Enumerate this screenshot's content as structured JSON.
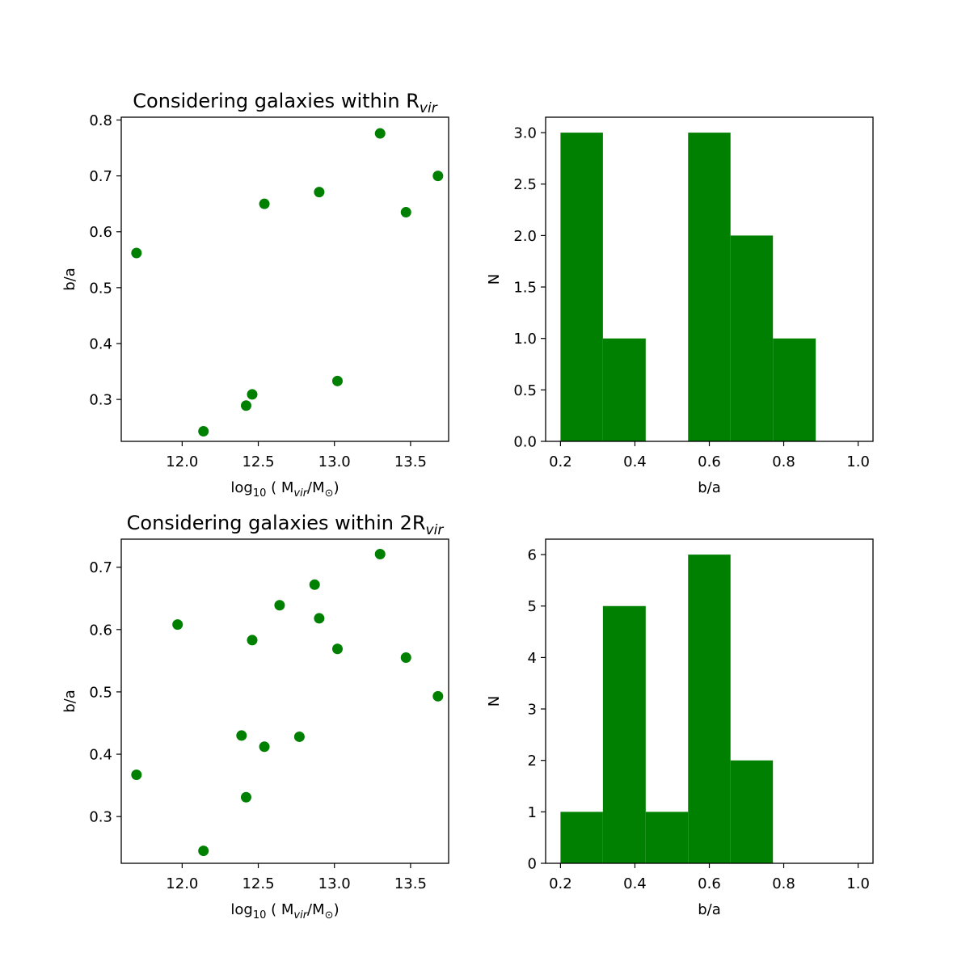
{
  "colors": {
    "mark": "#008000",
    "axis": "#000000",
    "background": "#ffffff"
  },
  "chart_data": [
    {
      "id": "scatter-top",
      "type": "scatter",
      "title": "Considering galaxies within R",
      "title_sub": "vir",
      "xlabel": "log",
      "xlabel_parts": {
        "base_sub": "10",
        "mid": " ( M",
        "vir_sub": "vir",
        "slash": "/M",
        "sun_sub": "⊙",
        "close": ")"
      },
      "ylabel": "b/a",
      "xlim": [
        11.6,
        13.75
      ],
      "ylim": [
        0.225,
        0.805
      ],
      "xticks": [
        12.0,
        12.5,
        13.0,
        13.5
      ],
      "xtick_labels": [
        "12.0",
        "12.5",
        "13.0",
        "13.5"
      ],
      "yticks": [
        0.3,
        0.4,
        0.5,
        0.6,
        0.7,
        0.8
      ],
      "ytick_labels": [
        "0.3",
        "0.4",
        "0.5",
        "0.6",
        "0.7",
        "0.8"
      ],
      "points": [
        {
          "x": 11.7,
          "y": 0.562
        },
        {
          "x": 12.14,
          "y": 0.243
        },
        {
          "x": 12.42,
          "y": 0.289
        },
        {
          "x": 12.46,
          "y": 0.309
        },
        {
          "x": 12.54,
          "y": 0.65
        },
        {
          "x": 12.9,
          "y": 0.671
        },
        {
          "x": 13.02,
          "y": 0.333
        },
        {
          "x": 13.3,
          "y": 0.776
        },
        {
          "x": 13.47,
          "y": 0.635
        },
        {
          "x": 13.68,
          "y": 0.7
        }
      ]
    },
    {
      "id": "hist-top",
      "type": "bar",
      "title": "",
      "xlabel": "b/a",
      "ylabel": "N",
      "xlim": [
        0.16,
        1.04
      ],
      "ylim": [
        0,
        3.15
      ],
      "xticks": [
        0.2,
        0.4,
        0.6,
        0.8,
        1.0
      ],
      "xtick_labels": [
        "0.2",
        "0.4",
        "0.6",
        "0.8",
        "1.0"
      ],
      "yticks": [
        0,
        0.5,
        1.0,
        1.5,
        2.0,
        2.5,
        3.0
      ],
      "ytick_labels": [
        "0.0",
        "0.5",
        "1.0",
        "1.5",
        "2.0",
        "2.5",
        "3.0"
      ],
      "bins": [
        {
          "x0": 0.2,
          "x1": 0.314,
          "value": 3
        },
        {
          "x0": 0.314,
          "x1": 0.429,
          "value": 1
        },
        {
          "x0": 0.429,
          "x1": 0.543,
          "value": 0
        },
        {
          "x0": 0.543,
          "x1": 0.657,
          "value": 3
        },
        {
          "x0": 0.657,
          "x1": 0.771,
          "value": 2
        },
        {
          "x0": 0.771,
          "x1": 0.886,
          "value": 1
        },
        {
          "x0": 0.886,
          "x1": 1.0,
          "value": 0
        }
      ]
    },
    {
      "id": "scatter-bottom",
      "type": "scatter",
      "title": "Considering galaxies within 2R",
      "title_sub": "vir",
      "xlabel": "log",
      "xlabel_parts": {
        "base_sub": "10",
        "mid": " ( M",
        "vir_sub": "vir",
        "slash": "/M",
        "sun_sub": "⊙",
        "close": ")"
      },
      "ylabel": "b/a",
      "xlim": [
        11.6,
        13.75
      ],
      "ylim": [
        0.225,
        0.745
      ],
      "xticks": [
        12.0,
        12.5,
        13.0,
        13.5
      ],
      "xtick_labels": [
        "12.0",
        "12.5",
        "13.0",
        "13.5"
      ],
      "yticks": [
        0.3,
        0.4,
        0.5,
        0.6,
        0.7
      ],
      "ytick_labels": [
        "0.3",
        "0.4",
        "0.5",
        "0.6",
        "0.7"
      ],
      "points": [
        {
          "x": 11.7,
          "y": 0.367
        },
        {
          "x": 11.97,
          "y": 0.608
        },
        {
          "x": 12.14,
          "y": 0.245
        },
        {
          "x": 12.39,
          "y": 0.43
        },
        {
          "x": 12.42,
          "y": 0.331
        },
        {
          "x": 12.46,
          "y": 0.583
        },
        {
          "x": 12.54,
          "y": 0.412
        },
        {
          "x": 12.64,
          "y": 0.639
        },
        {
          "x": 12.77,
          "y": 0.428
        },
        {
          "x": 12.87,
          "y": 0.672
        },
        {
          "x": 12.9,
          "y": 0.618
        },
        {
          "x": 13.02,
          "y": 0.569
        },
        {
          "x": 13.3,
          "y": 0.721
        },
        {
          "x": 13.47,
          "y": 0.555
        },
        {
          "x": 13.68,
          "y": 0.493
        }
      ]
    },
    {
      "id": "hist-bottom",
      "type": "bar",
      "title": "",
      "xlabel": "b/a",
      "ylabel": "N",
      "xlim": [
        0.16,
        1.04
      ],
      "ylim": [
        0,
        6.3
      ],
      "xticks": [
        0.2,
        0.4,
        0.6,
        0.8,
        1.0
      ],
      "xtick_labels": [
        "0.2",
        "0.4",
        "0.6",
        "0.8",
        "1.0"
      ],
      "yticks": [
        0,
        1,
        2,
        3,
        4,
        5,
        6
      ],
      "ytick_labels": [
        "0",
        "1",
        "2",
        "3",
        "4",
        "5",
        "6"
      ],
      "bins": [
        {
          "x0": 0.2,
          "x1": 0.314,
          "value": 1
        },
        {
          "x0": 0.314,
          "x1": 0.429,
          "value": 5
        },
        {
          "x0": 0.429,
          "x1": 0.543,
          "value": 1
        },
        {
          "x0": 0.543,
          "x1": 0.657,
          "value": 6
        },
        {
          "x0": 0.657,
          "x1": 0.771,
          "value": 2
        },
        {
          "x0": 0.771,
          "x1": 0.886,
          "value": 0
        },
        {
          "x0": 0.886,
          "x1": 1.0,
          "value": 0
        }
      ]
    }
  ]
}
